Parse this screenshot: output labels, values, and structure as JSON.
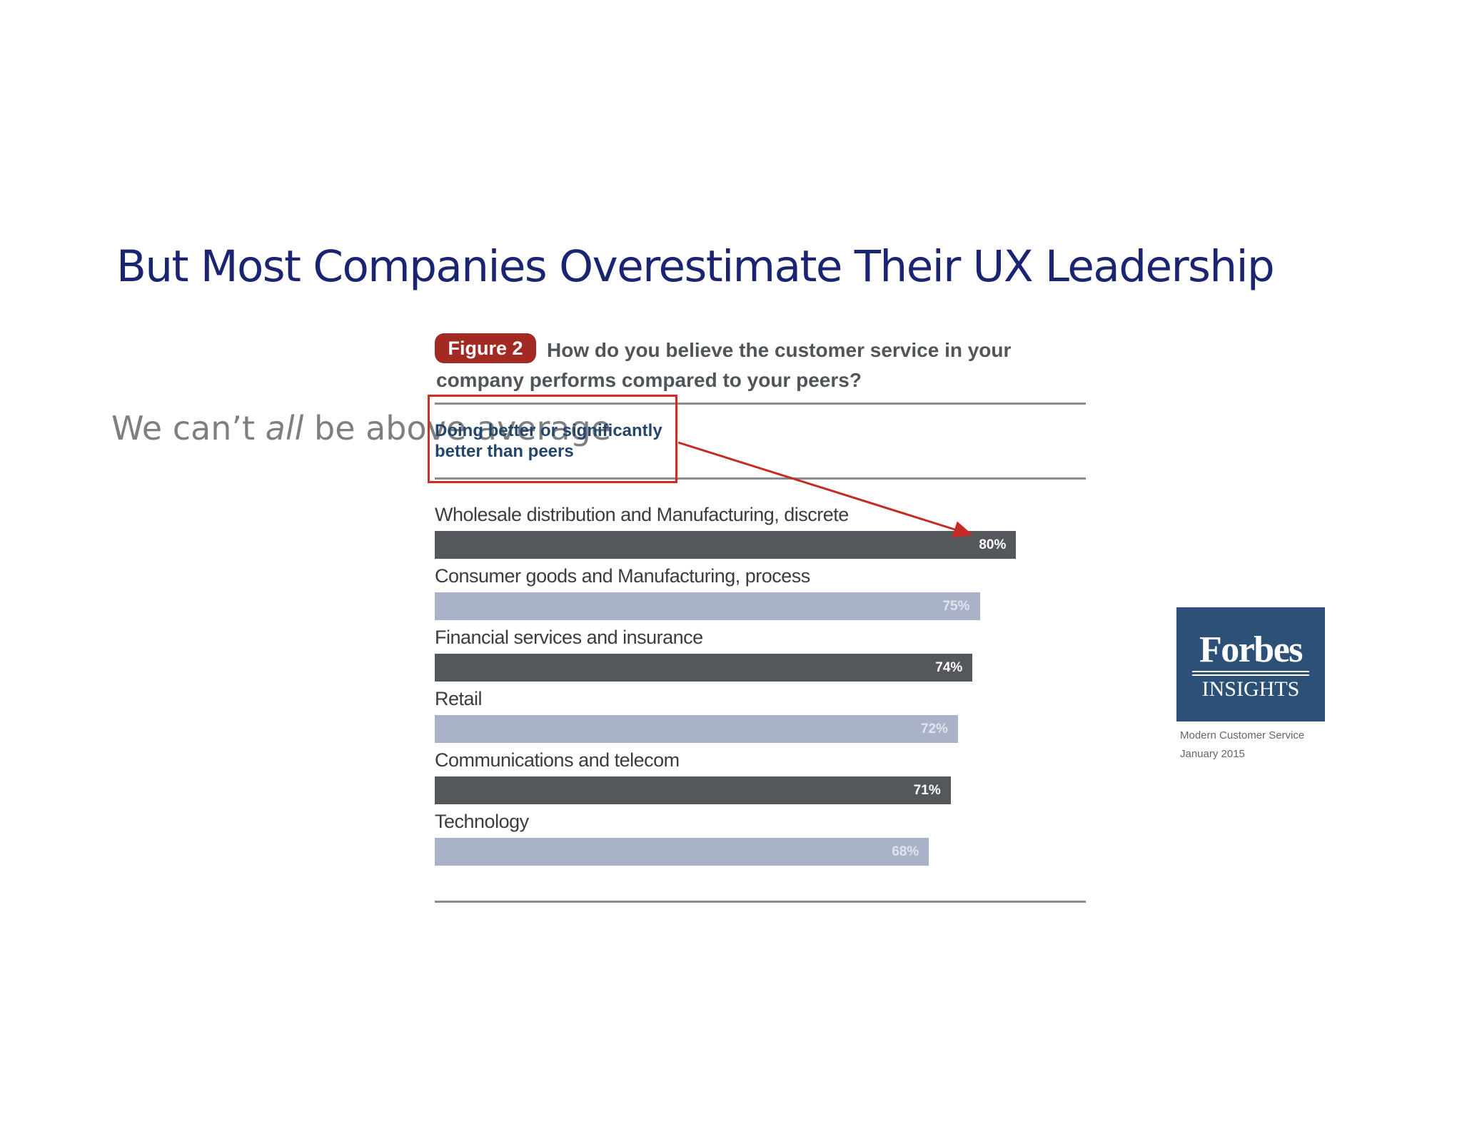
{
  "slide": {
    "title": "But Most Companies Overestimate Their UX Leadership",
    "note_pre": "We can’t ",
    "note_em": "all",
    "note_post": " be above average"
  },
  "figure": {
    "badge": "Figure 2",
    "question": "How do you believe the customer service in your company performs compared to your peers?",
    "subheading": "Doing better or significantly better than peers",
    "highlight_color": "#d32a22"
  },
  "source": {
    "logo_word": "Forbes",
    "logo_sub": "INSIGHTS",
    "line1": "Modern Customer Service",
    "line2": "January 2015",
    "logo_color": "#2c5076"
  },
  "chart_data": {
    "type": "bar",
    "orientation": "horizontal",
    "title": "How do you believe the customer service in your company performs compared to your peers?",
    "subtitle": "Doing better or significantly better than peers",
    "categories": [
      "Wholesale distribution and Manufacturing, discrete",
      "Consumer goods and Manufacturing, process",
      "Financial services and insurance",
      "Retail",
      "Communications and telecom",
      "Technology"
    ],
    "values": [
      80,
      75,
      74,
      72,
      71,
      68
    ],
    "value_labels": [
      "80%",
      "75%",
      "74%",
      "72%",
      "71%",
      "68%"
    ],
    "bar_colors": [
      "#54575b",
      "#a9b2c6",
      "#54575b",
      "#a9b2c6",
      "#54575b",
      "#a9b2c6"
    ],
    "label_colors": [
      "#ffffff",
      "#dfe4ee",
      "#ffffff",
      "#dfe4ee",
      "#ffffff",
      "#dfe4ee"
    ],
    "xlim": [
      0,
      100
    ],
    "grid": false,
    "legend": false
  }
}
